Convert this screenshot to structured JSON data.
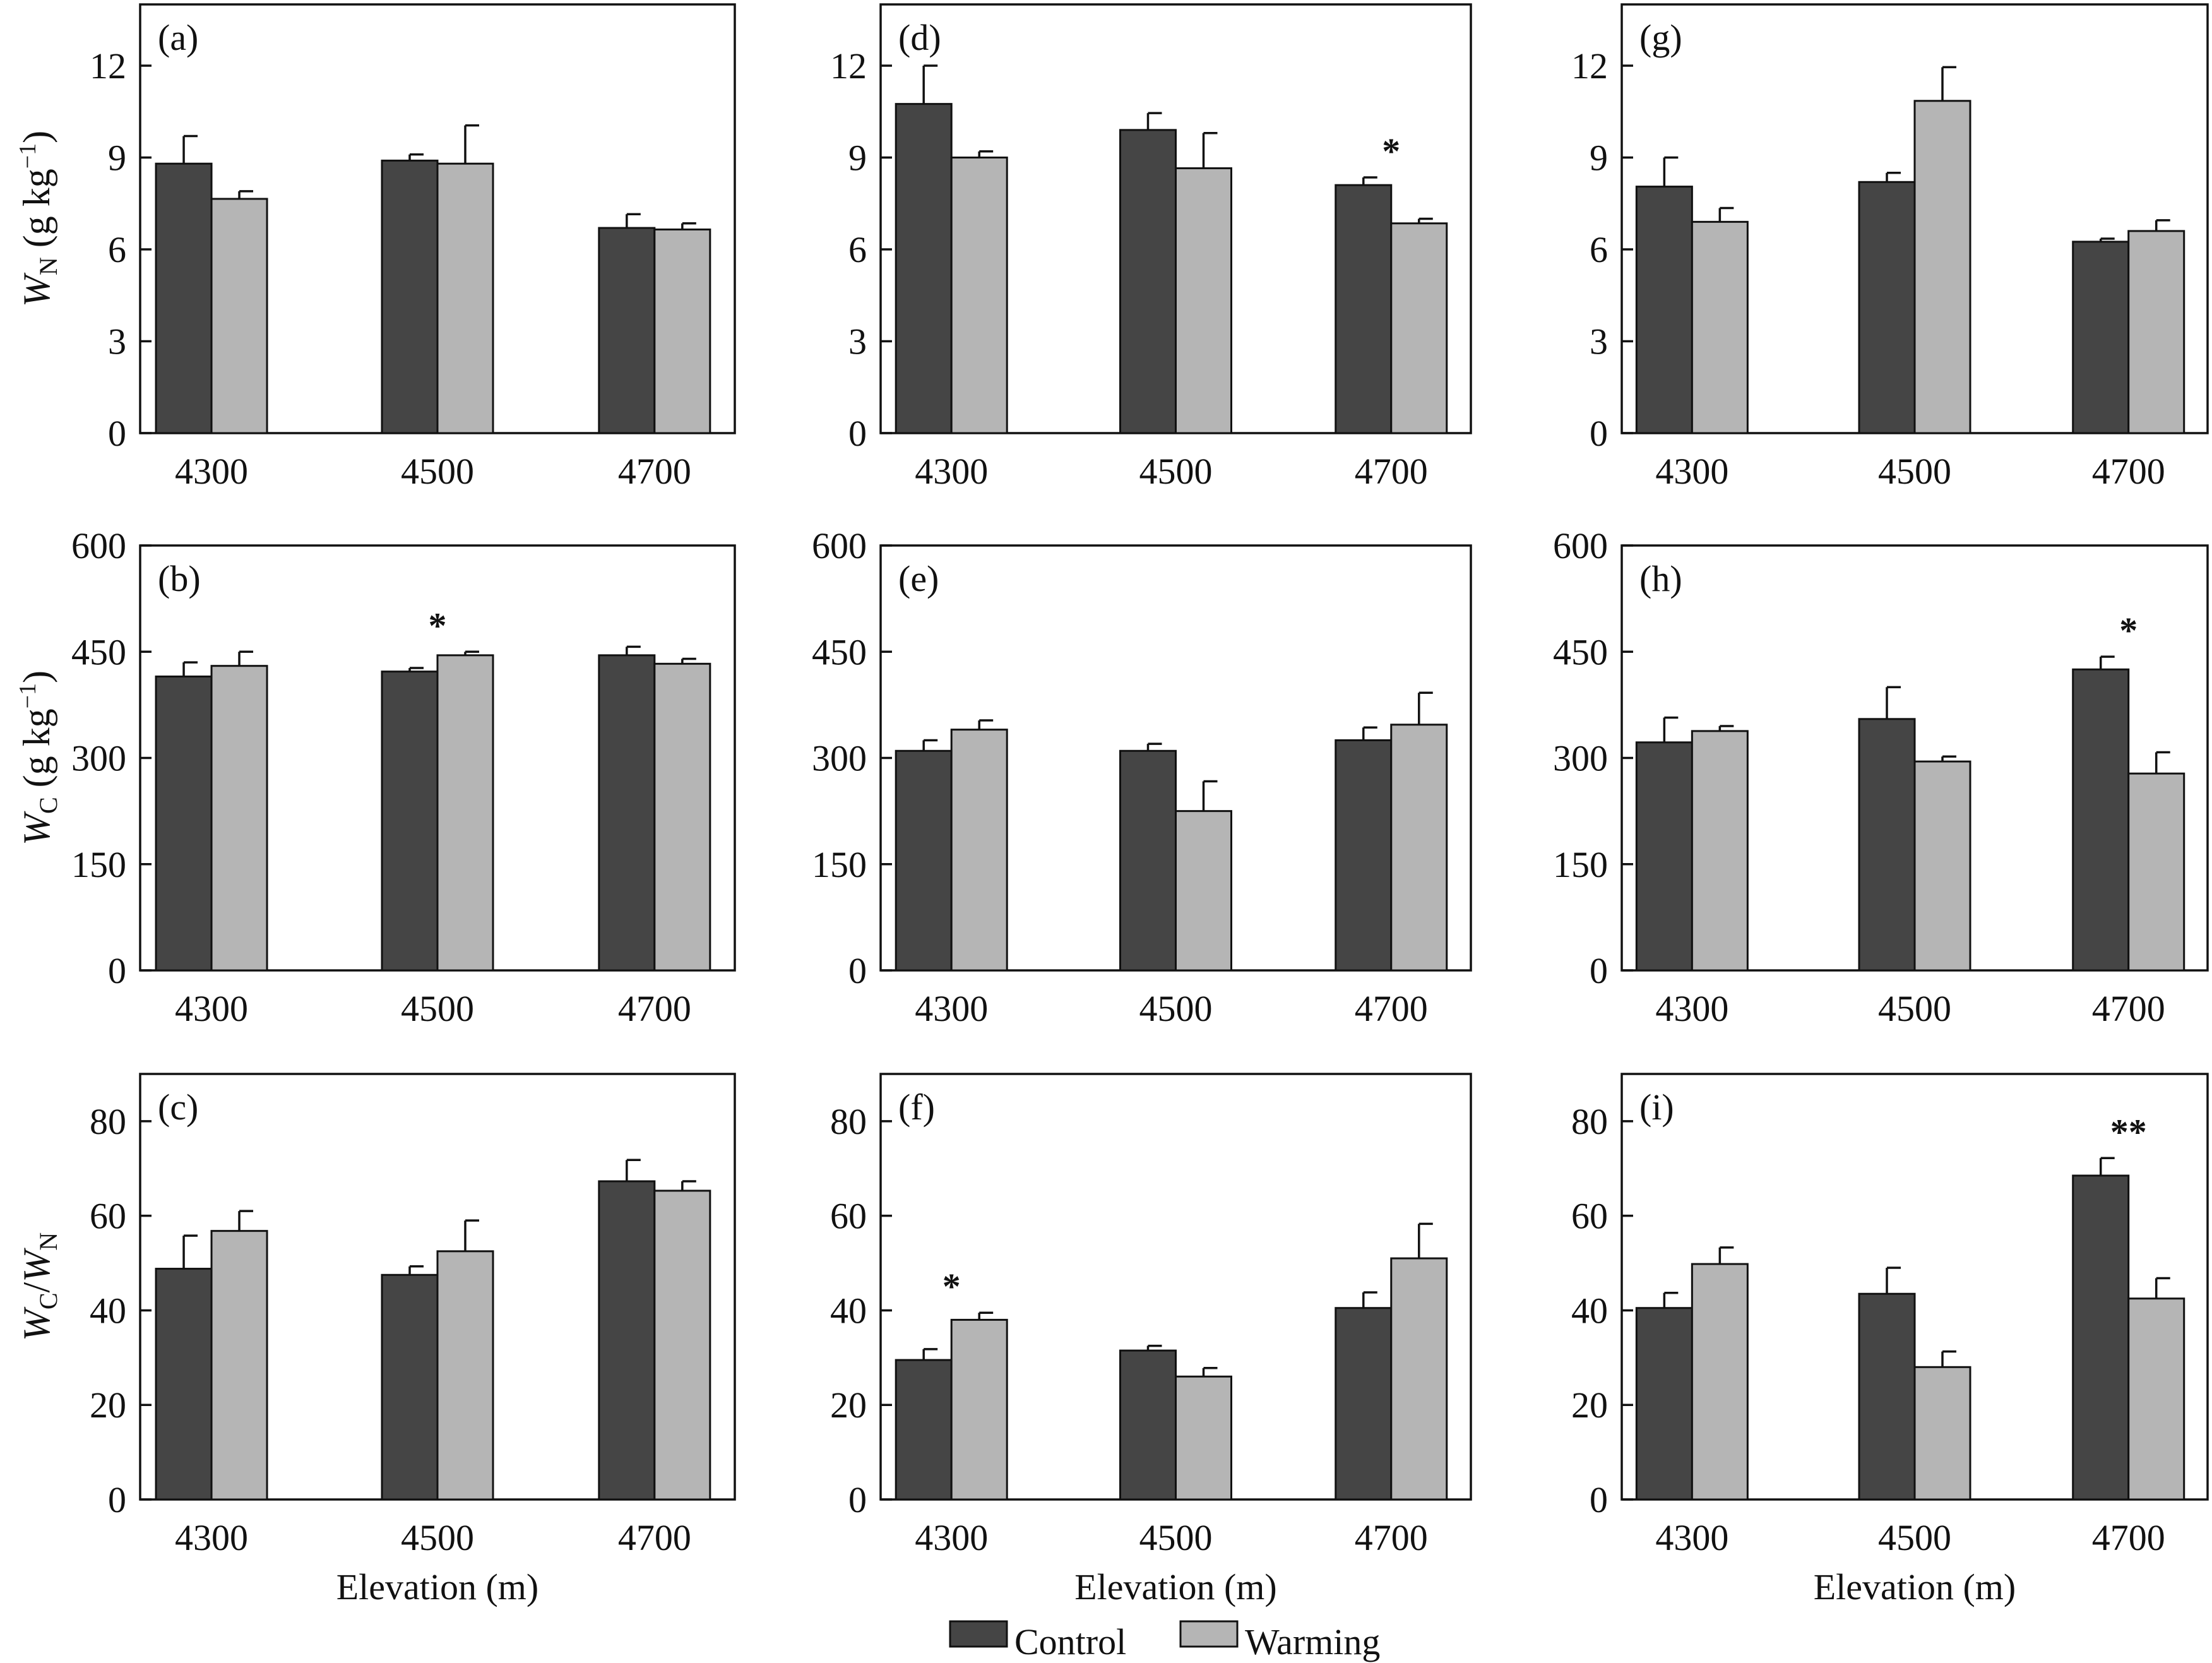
{
  "colors": {
    "control": "#454545",
    "warming": "#b5b5b5"
  },
  "legend": [
    {
      "label": "Control",
      "color_key": "control"
    },
    {
      "label": "Warming",
      "color_key": "warming"
    }
  ],
  "row_ylabels": [
    {
      "main": "W",
      "sub": "N",
      "suffix": " (g kg",
      "sup": "−1",
      "end": ")"
    },
    {
      "main": "W",
      "sub": "C",
      "suffix": " (g kg",
      "sup": "−1",
      "end": ")"
    },
    {
      "main": "W",
      "sub": "C",
      "suffix": "/",
      "main2": "W",
      "sub2": "N"
    }
  ],
  "xlabel": "Elevation (m)",
  "chart_data": [
    {
      "type": "bar",
      "panel": "(a)",
      "row": 0,
      "col": 0,
      "categories": [
        "4300",
        "4500",
        "4700"
      ],
      "ylim": [
        0,
        14
      ],
      "yticks": [
        0,
        3,
        6,
        9,
        12
      ],
      "series": [
        {
          "name": "Control",
          "values": [
            8.8,
            8.9,
            6.7
          ],
          "errors": [
            0.9,
            0.2,
            0.45
          ]
        },
        {
          "name": "Warming",
          "values": [
            7.65,
            8.8,
            6.65
          ],
          "errors": [
            0.25,
            1.25,
            0.2
          ]
        }
      ],
      "annotations": []
    },
    {
      "type": "bar",
      "panel": "(d)",
      "row": 0,
      "col": 1,
      "categories": [
        "4300",
        "4500",
        "4700"
      ],
      "ylim": [
        0,
        14
      ],
      "yticks": [
        0,
        3,
        6,
        9,
        12
      ],
      "series": [
        {
          "name": "Control",
          "values": [
            10.75,
            9.9,
            8.1
          ],
          "errors": [
            1.25,
            0.55,
            0.25
          ]
        },
        {
          "name": "Warming",
          "values": [
            9.0,
            8.65,
            6.85
          ],
          "errors": [
            0.2,
            1.15,
            0.15
          ]
        }
      ],
      "annotations": [
        {
          "text": "*",
          "category": 2
        }
      ]
    },
    {
      "type": "bar",
      "panel": "(g)",
      "row": 0,
      "col": 2,
      "categories": [
        "4300",
        "4500",
        "4700"
      ],
      "ylim": [
        0,
        14
      ],
      "yticks": [
        0,
        3,
        6,
        9,
        12
      ],
      "series": [
        {
          "name": "Control",
          "values": [
            8.05,
            8.2,
            6.25
          ],
          "errors": [
            0.95,
            0.3,
            0.1
          ]
        },
        {
          "name": "Warming",
          "values": [
            6.9,
            10.85,
            6.6
          ],
          "errors": [
            0.45,
            1.1,
            0.35
          ]
        }
      ],
      "annotations": []
    },
    {
      "type": "bar",
      "panel": "(b)",
      "row": 1,
      "col": 0,
      "categories": [
        "4300",
        "4500",
        "4700"
      ],
      "ylim": [
        0,
        600
      ],
      "yticks": [
        0,
        150,
        300,
        450,
        600
      ],
      "series": [
        {
          "name": "Control",
          "values": [
            415,
            422,
            445
          ],
          "errors": [
            20,
            5,
            12
          ]
        },
        {
          "name": "Warming",
          "values": [
            430,
            445,
            433
          ],
          "errors": [
            20,
            5,
            7
          ]
        }
      ],
      "annotations": [
        {
          "text": "*",
          "category": 1
        }
      ]
    },
    {
      "type": "bar",
      "panel": "(e)",
      "row": 1,
      "col": 1,
      "categories": [
        "4300",
        "4500",
        "4700"
      ],
      "ylim": [
        0,
        600
      ],
      "yticks": [
        0,
        150,
        300,
        450,
        600
      ],
      "series": [
        {
          "name": "Control",
          "values": [
            310,
            310,
            325
          ],
          "errors": [
            15,
            10,
            18
          ]
        },
        {
          "name": "Warming",
          "values": [
            340,
            225,
            347
          ],
          "errors": [
            13,
            42,
            45
          ]
        }
      ],
      "annotations": []
    },
    {
      "type": "bar",
      "panel": "(h)",
      "row": 1,
      "col": 2,
      "categories": [
        "4300",
        "4500",
        "4700"
      ],
      "ylim": [
        0,
        600
      ],
      "yticks": [
        0,
        150,
        300,
        450,
        600
      ],
      "series": [
        {
          "name": "Control",
          "values": [
            322,
            355,
            425
          ],
          "errors": [
            35,
            45,
            18
          ]
        },
        {
          "name": "Warming",
          "values": [
            338,
            295,
            278
          ],
          "errors": [
            7,
            7,
            30
          ]
        }
      ],
      "annotations": [
        {
          "text": "*",
          "category": 2
        }
      ]
    },
    {
      "type": "bar",
      "panel": "(c)",
      "row": 2,
      "col": 0,
      "categories": [
        "4300",
        "4500",
        "4700"
      ],
      "ylim": [
        0,
        90
      ],
      "yticks": [
        0,
        20,
        40,
        60,
        80
      ],
      "series": [
        {
          "name": "Control",
          "values": [
            48.8,
            47.5,
            67.3
          ],
          "errors": [
            7,
            1.8,
            4.5
          ]
        },
        {
          "name": "Warming",
          "values": [
            56.8,
            52.5,
            65.3
          ],
          "errors": [
            4.2,
            6.5,
            2
          ]
        }
      ],
      "annotations": []
    },
    {
      "type": "bar",
      "panel": "(f)",
      "row": 2,
      "col": 1,
      "categories": [
        "4300",
        "4500",
        "4700"
      ],
      "ylim": [
        0,
        90
      ],
      "yticks": [
        0,
        20,
        40,
        60,
        80
      ],
      "series": [
        {
          "name": "Control",
          "values": [
            29.5,
            31.5,
            40.5
          ],
          "errors": [
            2.3,
            1,
            3.3
          ]
        },
        {
          "name": "Warming",
          "values": [
            38,
            26,
            51
          ],
          "errors": [
            1.5,
            1.8,
            7.3
          ]
        }
      ],
      "annotations": [
        {
          "text": "*",
          "category": 0
        }
      ]
    },
    {
      "type": "bar",
      "panel": "(i)",
      "row": 2,
      "col": 2,
      "categories": [
        "4300",
        "4500",
        "4700"
      ],
      "ylim": [
        0,
        90
      ],
      "yticks": [
        0,
        20,
        40,
        60,
        80
      ],
      "series": [
        {
          "name": "Control",
          "values": [
            40.5,
            43.5,
            68.5
          ],
          "errors": [
            3.2,
            5.5,
            3.7
          ]
        },
        {
          "name": "Warming",
          "values": [
            49.8,
            28,
            42.5
          ],
          "errors": [
            3.5,
            3.3,
            4.3
          ]
        }
      ],
      "annotations": [
        {
          "text": "**",
          "category": 2
        }
      ]
    }
  ]
}
